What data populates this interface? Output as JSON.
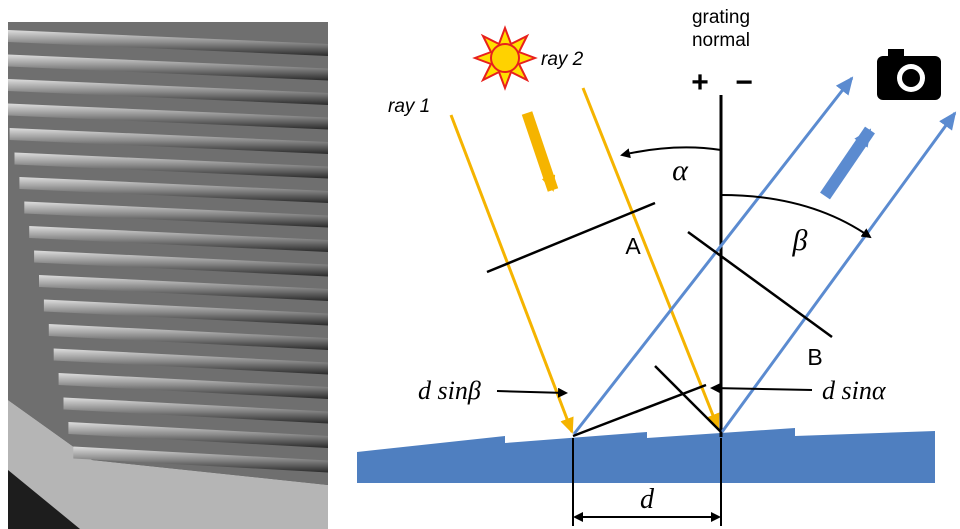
{
  "diagram": {
    "normal_label": [
      "grating",
      "normal"
    ],
    "signs": [
      "+",
      "−"
    ],
    "rays": [
      "ray 1",
      "ray 2"
    ],
    "angles": [
      "α",
      "β"
    ],
    "points": [
      "A",
      "B"
    ],
    "path_differences": [
      "d sinβ",
      "d sinα"
    ],
    "period": "d"
  }
}
